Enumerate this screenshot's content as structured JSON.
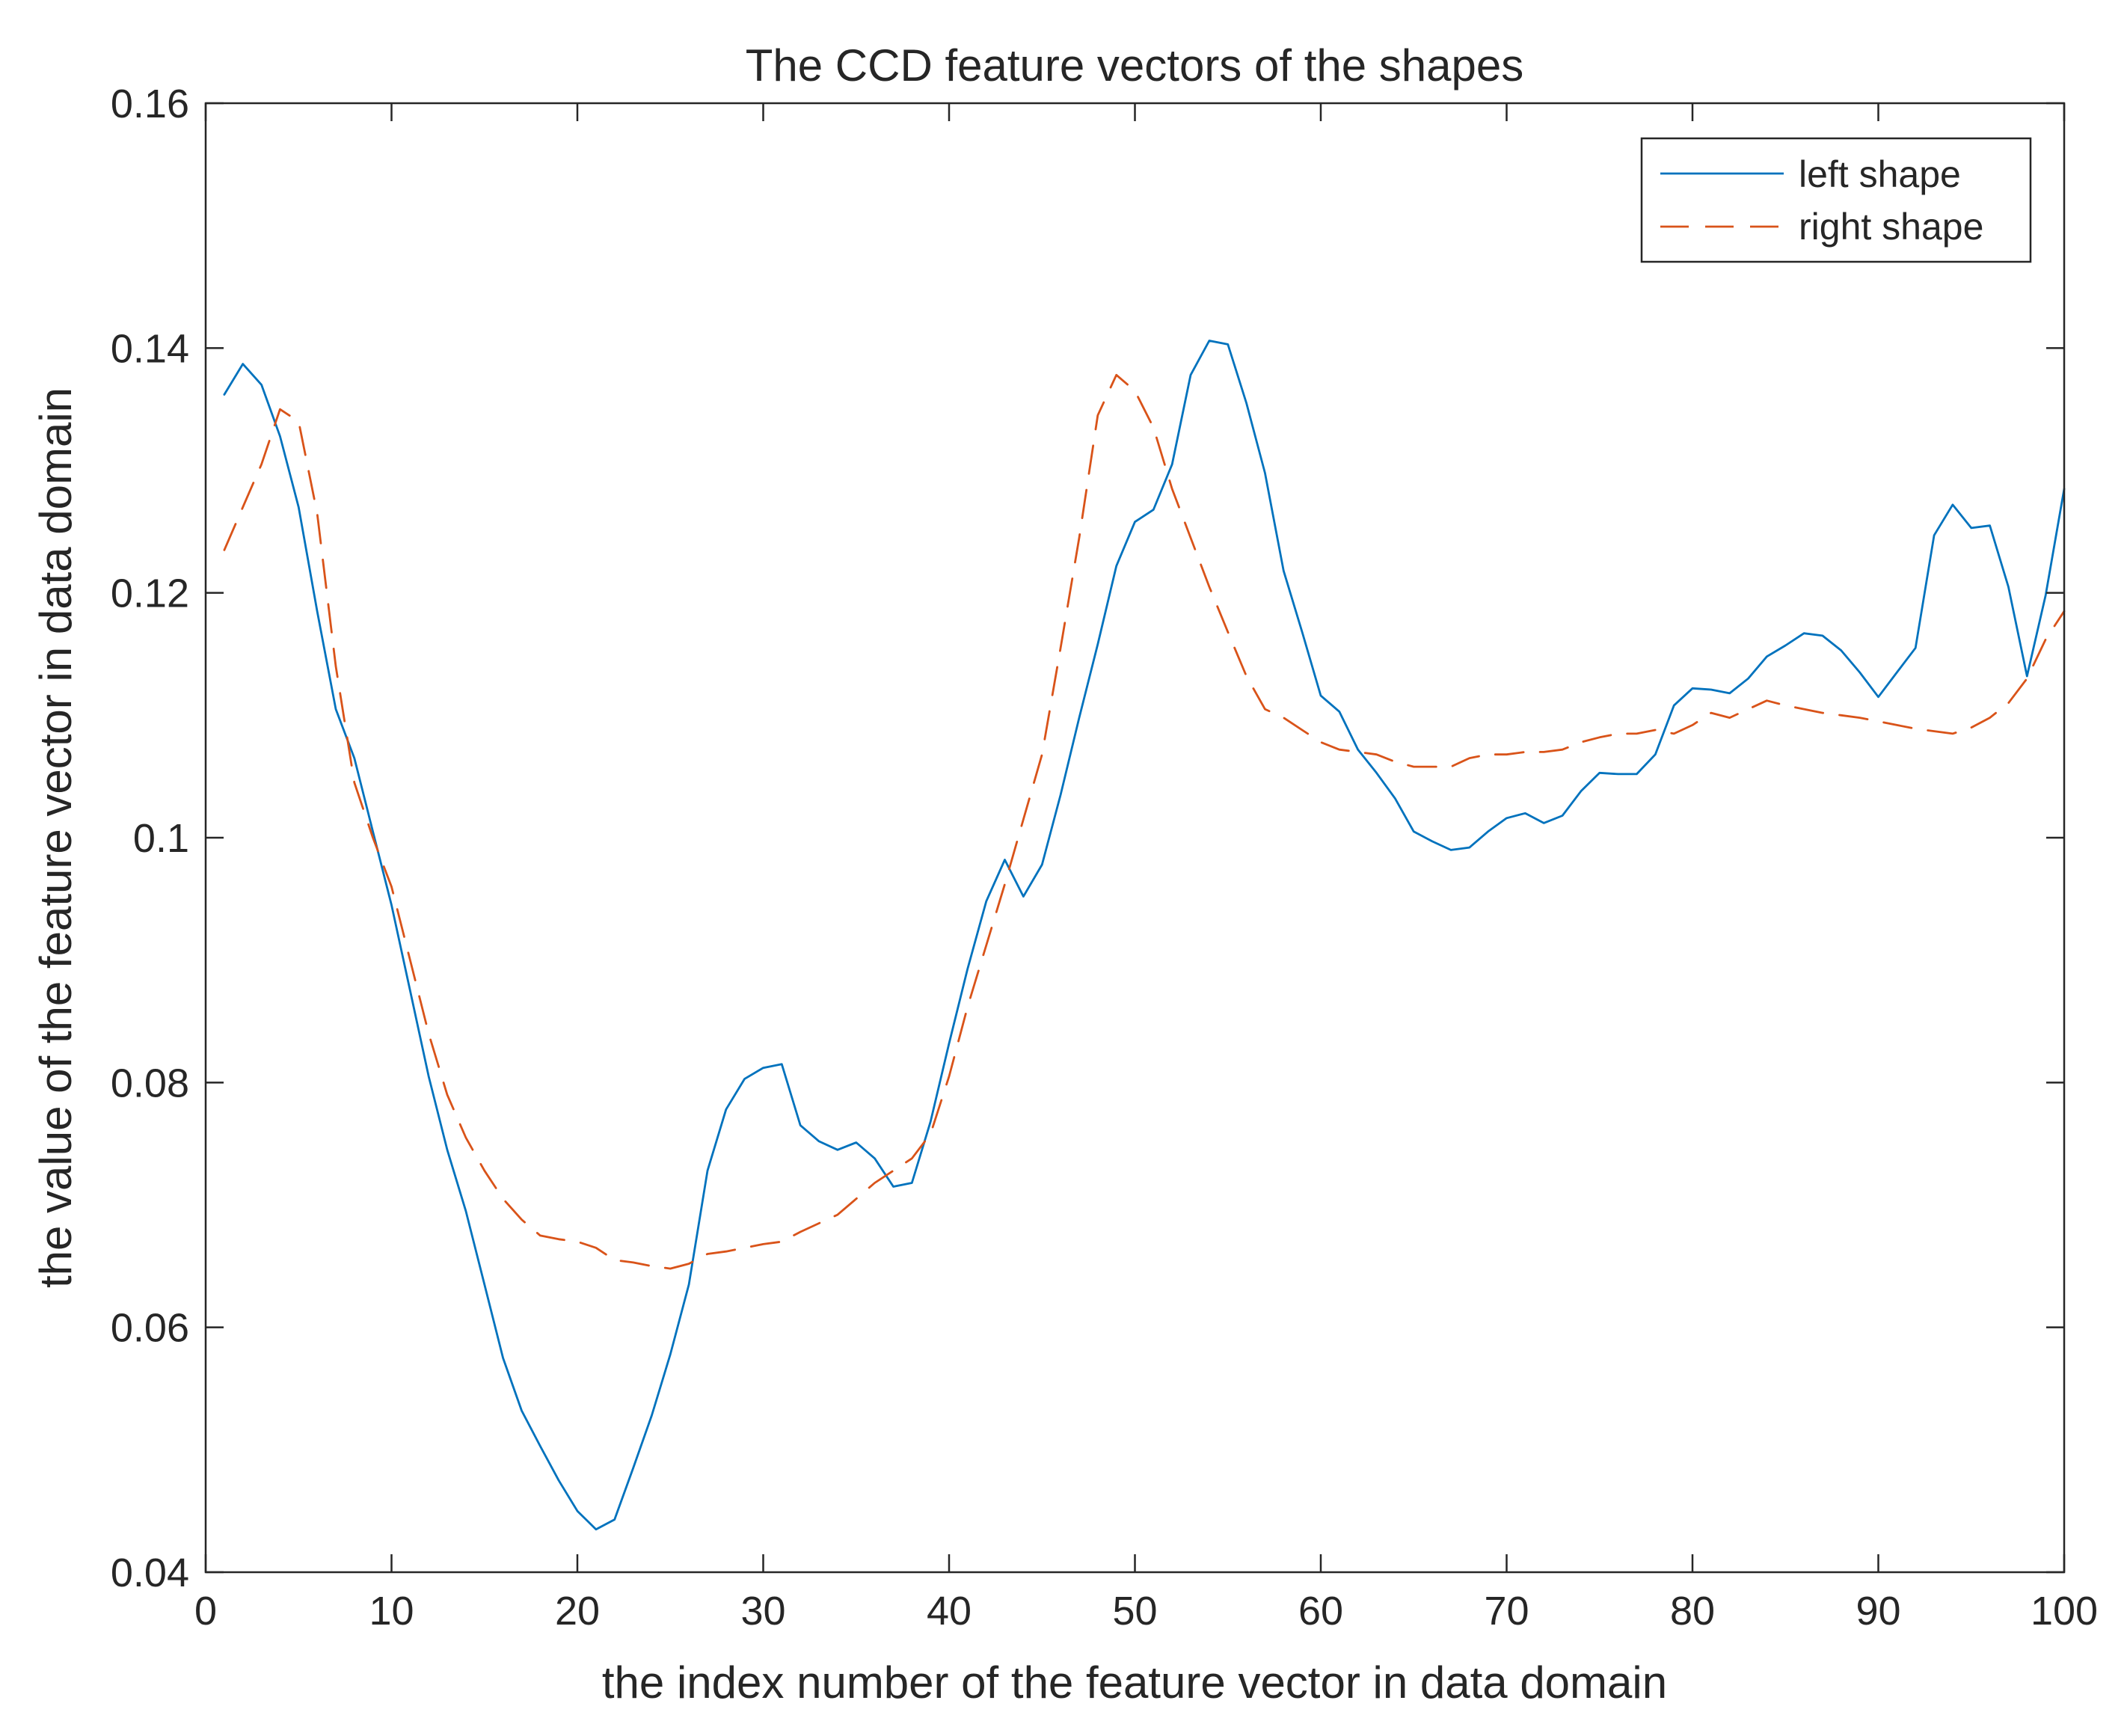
{
  "chart_data": {
    "type": "line",
    "title": "The CCD feature vectors of the shapes",
    "xlabel": "the index number of the feature vector in data domain",
    "ylabel": "the value of the feature vector in data domain",
    "xlim": [
      0,
      100
    ],
    "ylim": [
      0.04,
      0.16
    ],
    "xticks": [
      0,
      10,
      20,
      30,
      40,
      50,
      60,
      70,
      80,
      90,
      100
    ],
    "yticks": [
      0.04,
      0.06,
      0.08,
      0.1,
      0.12,
      0.14,
      0.16
    ],
    "xtick_labels": [
      "0",
      "10",
      "20",
      "30",
      "40",
      "50",
      "60",
      "70",
      "80",
      "90",
      "100"
    ],
    "ytick_labels": [
      "0.04",
      "0.06",
      "0.08",
      "0.1",
      "0.12",
      "0.14",
      "0.16"
    ],
    "grid": false,
    "legend_position": "top-right",
    "x": [
      1,
      2,
      3,
      4,
      5,
      6,
      7,
      8,
      9,
      10,
      11,
      12,
      13,
      14,
      15,
      16,
      17,
      18,
      19,
      20,
      21,
      22,
      23,
      24,
      25,
      26,
      27,
      28,
      29,
      30,
      31,
      32,
      33,
      34,
      35,
      36,
      37,
      38,
      39,
      40,
      41,
      42,
      43,
      44,
      45,
      46,
      47,
      48,
      49,
      50,
      51,
      52,
      53,
      54,
      55,
      56,
      57,
      58,
      59,
      60,
      61,
      62,
      63,
      64,
      65,
      66,
      67,
      68,
      69,
      70,
      71,
      72,
      73,
      74,
      75,
      76,
      77,
      78,
      79,
      80,
      81,
      82,
      83,
      84,
      85,
      86,
      87,
      88,
      89,
      90,
      91,
      92,
      93,
      94,
      95,
      96,
      97,
      98,
      99,
      100
    ],
    "series": [
      {
        "name": "left shape",
        "color": "#0072BD",
        "style": "solid",
        "values": [
          0.1362,
          0.1387,
          0.137,
          0.1328,
          0.127,
          0.1185,
          0.1105,
          0.1065,
          0.1005,
          0.0945,
          0.0875,
          0.0805,
          0.0745,
          0.0695,
          0.0635,
          0.0575,
          0.0532,
          0.0503,
          0.0475,
          0.045,
          0.0435,
          0.0443,
          0.0485,
          0.0528,
          0.0578,
          0.0635,
          0.0728,
          0.0778,
          0.0803,
          0.0812,
          0.0815,
          0.0765,
          0.0752,
          0.0745,
          0.0751,
          0.0738,
          0.0715,
          0.0718,
          0.0768,
          0.0832,
          0.0893,
          0.0948,
          0.0982,
          0.0952,
          0.0978,
          0.1035,
          0.1098,
          0.1158,
          0.1222,
          0.1258,
          0.1268,
          0.1305,
          0.1378,
          0.1406,
          0.1403,
          0.1355,
          0.1298,
          0.1218,
          0.1168,
          0.1116,
          0.1103,
          0.1072,
          0.1053,
          0.1032,
          0.1005,
          0.0997,
          0.099,
          0.0992,
          0.1005,
          0.1016,
          0.102,
          0.1012,
          0.1018,
          0.1038,
          0.1053,
          0.1052,
          0.1052,
          0.1068,
          0.1108,
          0.1122,
          0.1121,
          0.1118,
          0.113,
          0.1148,
          0.1157,
          0.1167,
          0.1165,
          0.1153,
          0.1135,
          0.1115,
          0.1135,
          0.1155,
          0.1247,
          0.1272,
          0.1253,
          0.1255,
          0.1205,
          0.1132,
          0.1198,
          0.1285
        ]
      },
      {
        "name": "right shape",
        "color": "#D95319",
        "style": "dashed",
        "values": [
          0.1235,
          0.127,
          0.1305,
          0.135,
          0.134,
          0.1265,
          0.114,
          0.1045,
          0.1,
          0.096,
          0.09,
          0.084,
          0.079,
          0.0755,
          0.0728,
          0.0705,
          0.0688,
          0.0675,
          0.0672,
          0.067,
          0.0665,
          0.0655,
          0.0653,
          0.065,
          0.0648,
          0.0652,
          0.066,
          0.0662,
          0.0665,
          0.0668,
          0.067,
          0.0678,
          0.0685,
          0.0692,
          0.0705,
          0.0718,
          0.0728,
          0.0738,
          0.0758,
          0.0805,
          0.0862,
          0.0912,
          0.0962,
          0.1015,
          0.1068,
          0.1155,
          0.1245,
          0.1345,
          0.1378,
          0.1365,
          0.1335,
          0.1285,
          0.1245,
          0.1205,
          0.1168,
          0.1132,
          0.1105,
          0.1098,
          0.1088,
          0.1078,
          0.1072,
          0.107,
          0.1068,
          0.1062,
          0.1058,
          0.1058,
          0.1058,
          0.1065,
          0.1068,
          0.1068,
          0.107,
          0.107,
          0.1072,
          0.1078,
          0.1082,
          0.1085,
          0.1085,
          0.1088,
          0.1085,
          0.1092,
          0.1102,
          0.1098,
          0.1105,
          0.1112,
          0.1108,
          0.1105,
          0.1102,
          0.11,
          0.1098,
          0.1095,
          0.1092,
          0.1089,
          0.1087,
          0.1085,
          0.109,
          0.1098,
          0.111,
          0.113,
          0.1162,
          0.1185
        ]
      }
    ]
  }
}
